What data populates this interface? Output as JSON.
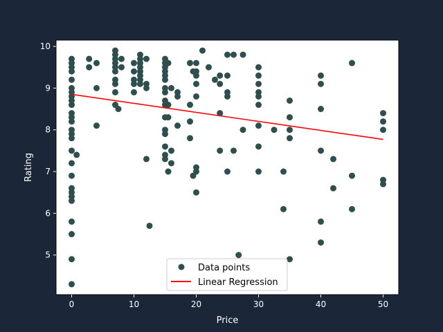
{
  "chart_data": {
    "type": "scatter",
    "title": "",
    "xlabel": "Price",
    "ylabel": "Rating",
    "xlim": [
      -2.5,
      52.5
    ],
    "ylim": [
      4.05,
      10.15
    ],
    "xticks": [
      0,
      10,
      20,
      30,
      40,
      50
    ],
    "yticks": [
      5,
      6,
      7,
      8,
      9,
      10
    ],
    "grid": false,
    "legend_position": "bottom-center",
    "colors": {
      "figure_background": "#1b2638",
      "plot_background": "#ffffff",
      "points": "#2f4f4f",
      "regression_line": "#ff0000",
      "text": "#ffffff"
    },
    "series": [
      {
        "name": "Data points",
        "kind": "scatter",
        "points": [
          [
            0,
            9.7
          ],
          [
            0,
            9.6
          ],
          [
            0,
            9.5
          ],
          [
            0,
            9.4
          ],
          [
            0,
            9.2
          ],
          [
            0,
            9.0
          ],
          [
            0,
            8.9
          ],
          [
            0,
            8.8
          ],
          [
            0,
            8.7
          ],
          [
            0,
            8.6
          ],
          [
            0,
            8.4
          ],
          [
            0,
            8.3
          ],
          [
            0,
            8.2
          ],
          [
            0,
            8.0
          ],
          [
            0,
            7.9
          ],
          [
            0,
            7.8
          ],
          [
            0,
            7.5
          ],
          [
            0,
            7.2
          ],
          [
            0,
            6.9
          ],
          [
            0,
            6.6
          ],
          [
            0,
            6.5
          ],
          [
            0,
            6.4
          ],
          [
            0,
            6.3
          ],
          [
            0,
            5.8
          ],
          [
            0,
            5.5
          ],
          [
            0,
            4.9
          ],
          [
            0,
            4.3
          ],
          [
            0.8,
            7.4
          ],
          [
            2.8,
            9.7
          ],
          [
            2.8,
            9.5
          ],
          [
            4,
            9.6
          ],
          [
            4,
            9.0
          ],
          [
            4,
            8.1
          ],
          [
            7,
            9.9
          ],
          [
            7,
            9.8
          ],
          [
            7,
            9.7
          ],
          [
            7,
            9.6
          ],
          [
            7,
            9.5
          ],
          [
            7,
            9.4
          ],
          [
            7,
            9.2
          ],
          [
            7,
            9.1
          ],
          [
            7,
            8.9
          ],
          [
            7,
            8.6
          ],
          [
            7.5,
            8.5
          ],
          [
            8,
            9.7
          ],
          [
            8,
            9.5
          ],
          [
            10,
            9.6
          ],
          [
            10,
            9.4
          ],
          [
            10,
            9.2
          ],
          [
            10,
            9.1
          ],
          [
            10,
            8.9
          ],
          [
            11,
            9.8
          ],
          [
            11,
            9.7
          ],
          [
            11,
            9.6
          ],
          [
            11,
            9.5
          ],
          [
            11,
            9.4
          ],
          [
            11,
            9.3
          ],
          [
            11,
            9.2
          ],
          [
            11,
            9.1
          ],
          [
            12,
            9.7
          ],
          [
            12,
            9.1
          ],
          [
            12,
            9.0
          ],
          [
            12,
            7.3
          ],
          [
            12.5,
            5.7
          ],
          [
            15,
            9.7
          ],
          [
            15,
            9.6
          ],
          [
            15,
            9.5
          ],
          [
            15,
            9.4
          ],
          [
            15,
            9.3
          ],
          [
            15,
            9.2
          ],
          [
            15,
            9.0
          ],
          [
            15,
            8.9
          ],
          [
            15,
            8.7
          ],
          [
            15,
            8.6
          ],
          [
            15,
            8.3
          ],
          [
            15,
            8.0
          ],
          [
            15,
            7.9
          ],
          [
            15,
            7.6
          ],
          [
            15,
            7.4
          ],
          [
            15,
            7.3
          ],
          [
            15.5,
            9.6
          ],
          [
            15.5,
            8.6
          ],
          [
            15.5,
            8.3
          ],
          [
            15.5,
            7.0
          ],
          [
            16,
            9.0
          ],
          [
            16,
            7.5
          ],
          [
            16,
            7.2
          ],
          [
            17,
            8.9
          ],
          [
            17,
            8.8
          ],
          [
            17,
            8.1
          ],
          [
            19,
            9.6
          ],
          [
            19,
            8.6
          ],
          [
            19,
            8.2
          ],
          [
            19,
            7.8
          ],
          [
            19.5,
            9.4
          ],
          [
            19.5,
            6.9
          ],
          [
            20,
            9.6
          ],
          [
            20,
            9.4
          ],
          [
            20,
            9.3
          ],
          [
            20,
            9.1
          ],
          [
            20,
            8.8
          ],
          [
            20,
            7.1
          ],
          [
            20,
            7.0
          ],
          [
            20,
            6.5
          ],
          [
            21,
            9.9
          ],
          [
            22,
            9.5
          ],
          [
            23,
            9.2
          ],
          [
            23.8,
            9.3
          ],
          [
            23.8,
            9.1
          ],
          [
            23.8,
            8.4
          ],
          [
            23.8,
            7.5
          ],
          [
            25,
            9.8
          ],
          [
            25,
            9.3
          ],
          [
            25,
            8.9
          ],
          [
            25,
            8.8
          ],
          [
            25,
            7.0
          ],
          [
            26,
            9.8
          ],
          [
            26,
            7.5
          ],
          [
            26.8,
            5.0
          ],
          [
            27.5,
            9.8
          ],
          [
            27.5,
            8.0
          ],
          [
            30,
            9.5
          ],
          [
            30,
            9.3
          ],
          [
            30,
            9.1
          ],
          [
            30,
            8.9
          ],
          [
            30,
            8.8
          ],
          [
            30,
            8.6
          ],
          [
            30,
            8.1
          ],
          [
            30,
            7.6
          ],
          [
            30,
            7.0
          ],
          [
            32.5,
            8.0
          ],
          [
            34,
            7.0
          ],
          [
            34,
            6.1
          ],
          [
            35,
            8.7
          ],
          [
            35,
            8.3
          ],
          [
            35,
            8.0
          ],
          [
            35,
            7.8
          ],
          [
            35,
            4.9
          ],
          [
            40,
            9.3
          ],
          [
            40,
            9.1
          ],
          [
            40,
            8.5
          ],
          [
            40,
            7.5
          ],
          [
            40,
            5.8
          ],
          [
            40,
            5.3
          ],
          [
            42,
            7.3
          ],
          [
            42,
            6.6
          ],
          [
            45,
            9.6
          ],
          [
            45,
            6.9
          ],
          [
            45,
            6.1
          ],
          [
            50,
            8.4
          ],
          [
            50,
            8.2
          ],
          [
            50,
            8.0
          ],
          [
            50,
            6.8
          ],
          [
            50,
            6.7
          ]
        ]
      },
      {
        "name": "Linear Regression",
        "kind": "line",
        "points": [
          [
            0,
            8.85
          ],
          [
            50,
            7.77
          ]
        ]
      }
    ]
  }
}
